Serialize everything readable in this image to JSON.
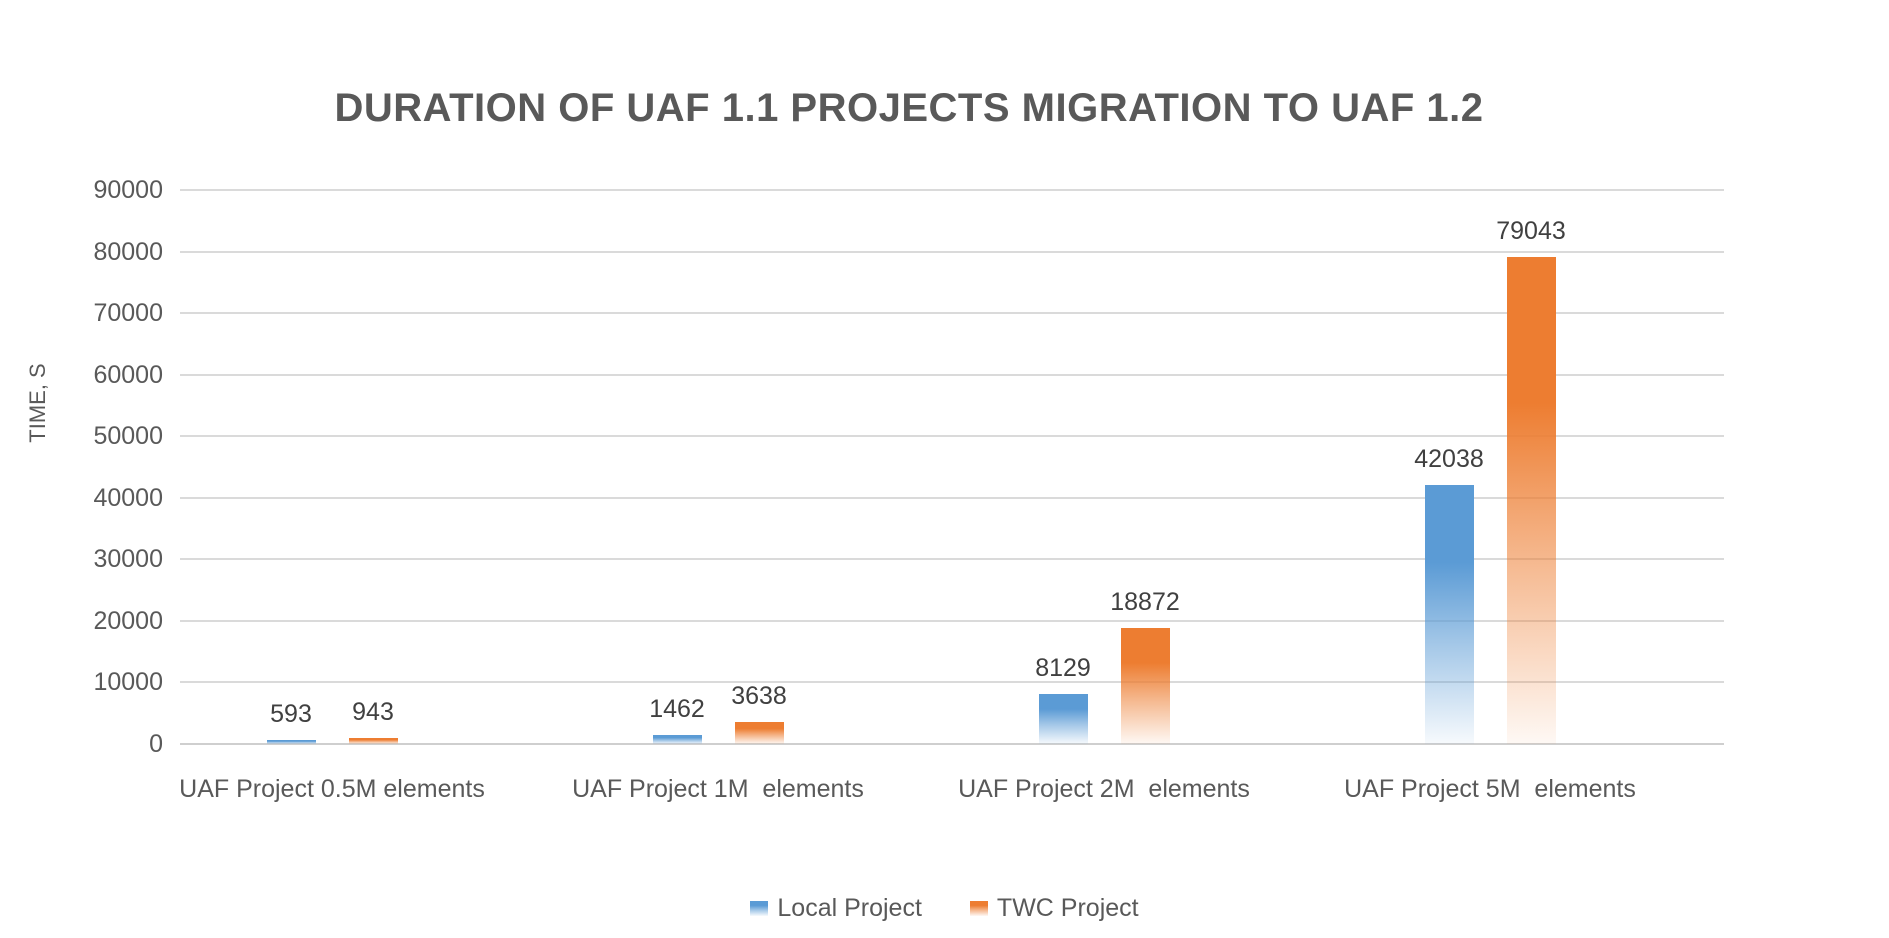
{
  "chart_data": {
    "type": "bar",
    "title": "DURATION OF UAF 1.1 PROJECTS MIGRATION TO UAF 1.2",
    "ylabel": "TIME, S",
    "xlabel": "",
    "categories": [
      "UAF Project 0.5M elements",
      "UAF Project 1M  elements",
      "UAF Project 2M  elements",
      "UAF Project 5M  elements"
    ],
    "series": [
      {
        "name": "Local Project",
        "color": "#5B9BD5",
        "values": [
          593,
          1462,
          8129,
          42038
        ]
      },
      {
        "name": "TWC Project",
        "color": "#ED7D31",
        "values": [
          943,
          3638,
          18872,
          79043
        ]
      }
    ],
    "data_labels": [
      [
        "593",
        "1462",
        "8129",
        "42038"
      ],
      [
        "943",
        "3638",
        "18872",
        "79043"
      ]
    ],
    "yticks": [
      "0",
      "10000",
      "20000",
      "30000",
      "40000",
      "50000",
      "60000",
      "70000",
      "80000",
      "90000"
    ],
    "ylim": [
      0,
      90000
    ],
    "ytick_interval": 10000,
    "grid": true,
    "legend_position": "bottom",
    "bar_fill_style": "gradient-fade-to-white"
  },
  "colors": {
    "series_local": "#5B9BD5",
    "series_twc": "#ED7D31",
    "title_text": "#595959",
    "axis_text": "#595959",
    "value_label_text": "#404040",
    "gridline": "#DADADA",
    "axis_line": "#CFCFCF",
    "background": "#FFFFFF"
  }
}
